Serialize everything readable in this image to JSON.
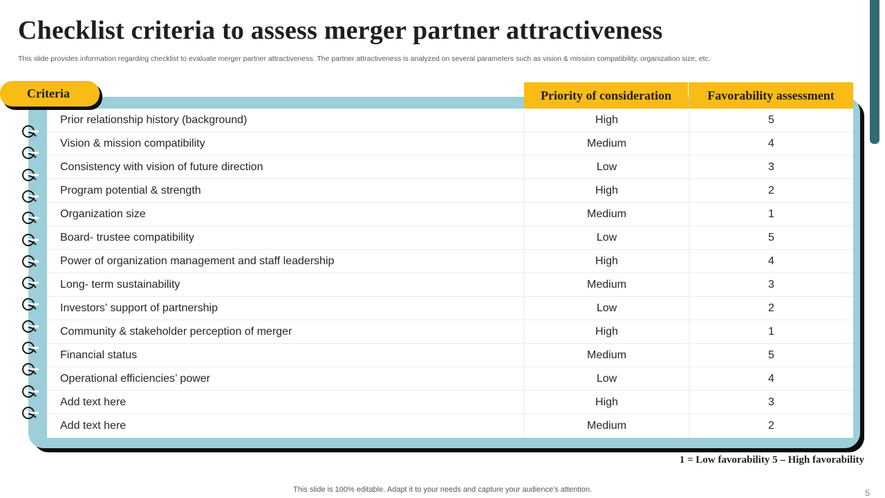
{
  "title": "Checklist criteria to assess merger partner attractiveness",
  "subtitle": "This slide provides information regarding checklist to evaluate merger partner attractiveness. The partner attractiveness is analyzed on several parameters such as vision & mission compatibility, organization size, etc.",
  "table": {
    "criteria_label": "Criteria",
    "headers": [
      "Priority of consideration",
      "Favorability assessment"
    ],
    "rows": [
      {
        "criteria": "Prior relationship history (background)",
        "priority": "High",
        "favorability": "5"
      },
      {
        "criteria": "Vision & mission compatibility",
        "priority": "Medium",
        "favorability": "4"
      },
      {
        "criteria": "Consistency with vision of future direction",
        "priority": "Low",
        "favorability": "3"
      },
      {
        "criteria": "Program potential & strength",
        "priority": "High",
        "favorability": "2"
      },
      {
        "criteria": "Organization size",
        "priority": "Medium",
        "favorability": "1"
      },
      {
        "criteria": "Board- trustee compatibility",
        "priority": "Low",
        "favorability": "5"
      },
      {
        "criteria": "Power of organization management and staff leadership",
        "priority": "High",
        "favorability": "4"
      },
      {
        "criteria": "Long- term sustainability",
        "priority": "Medium",
        "favorability": "3"
      },
      {
        "criteria": "Investors’ support of partnership",
        "priority": "Low",
        "favorability": "2"
      },
      {
        "criteria": "Community & stakeholder perception of merger",
        "priority": "High",
        "favorability": "1"
      },
      {
        "criteria": "Financial status",
        "priority": "Medium",
        "favorability": "5"
      },
      {
        "criteria": "Operational efficiencies’ power",
        "priority": "Low",
        "favorability": "4"
      },
      {
        "criteria": "Add text here",
        "priority": "High",
        "favorability": "3"
      },
      {
        "criteria": "Add text here",
        "priority": "Medium",
        "favorability": "2"
      }
    ]
  },
  "legend": "1 = Low favorability  5 – High favorability",
  "footer": "This slide is 100% editable. Adapt it to your needs and capture your audience's attention.",
  "page_number": "5",
  "colors": {
    "accent_yellow": "#f8bc14",
    "card_teal": "#9ccfd9",
    "side_bar": "#2e6b73"
  },
  "icons": [
    "notebook-ring-icon"
  ]
}
